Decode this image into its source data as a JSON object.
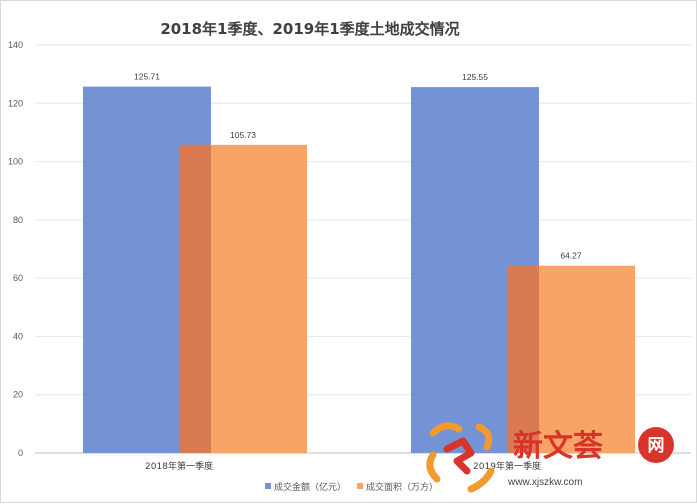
{
  "chart_data": {
    "type": "bar",
    "title": "2018年1季度、2019年1季度土地成交情况",
    "categories": [
      "2018年第一季度",
      "2019年第一季度"
    ],
    "series": [
      {
        "name": "成交金额（亿元）",
        "values": [
          125.71,
          125.55
        ],
        "color": "#7393d4",
        "data_labels": [
          "125.71",
          "125.55"
        ]
      },
      {
        "name": "成交面积（万方）",
        "values": [
          105.73,
          64.27
        ],
        "color": "#f9a467",
        "data_labels": [
          "105.73",
          "64.27"
        ]
      }
    ],
    "yticks": [
      "0",
      "20",
      "40",
      "60",
      "80",
      "100",
      "120",
      "140"
    ],
    "ylim": [
      0,
      140
    ],
    "grid": true,
    "legend_position": "bottom-right",
    "overlap_color": "#d87b52"
  },
  "watermark": {
    "text": "新文荟",
    "circle_char": "网",
    "url": "www.xjszkw.com",
    "accent_color": "#d9342b",
    "logo_orange": "#f29a2e"
  }
}
